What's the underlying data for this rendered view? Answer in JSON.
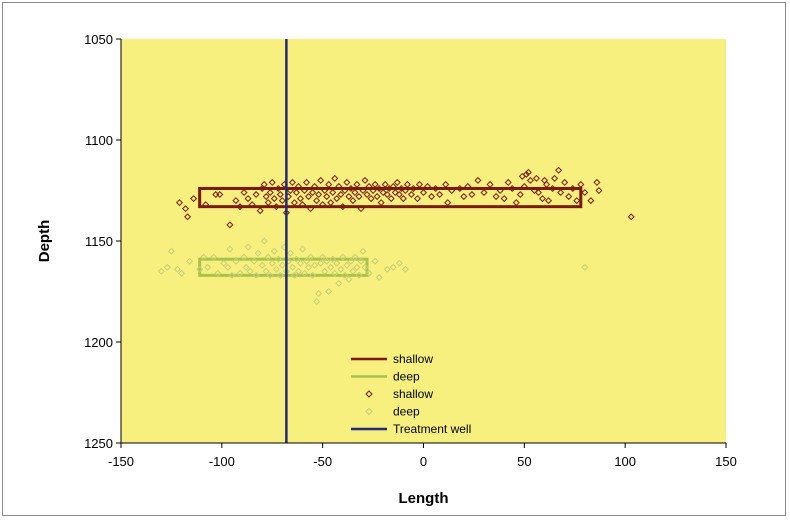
{
  "chart_data": {
    "type": "scatter",
    "xlabel": "Length",
    "ylabel": "Depth",
    "xlim": [
      -150,
      150
    ],
    "ylim": [
      1050,
      1250
    ],
    "y_inverted": true,
    "x_ticks": [
      -150,
      -100,
      -50,
      0,
      50,
      100,
      150
    ],
    "y_ticks": [
      1050,
      1100,
      1150,
      1200,
      1250
    ],
    "plot_background": "#f7ef7e",
    "grid": false,
    "legend_position": "bottom-center",
    "legend": [
      {
        "label": "shallow",
        "kind": "line",
        "color": "#7a1a12"
      },
      {
        "label": "deep",
        "kind": "line",
        "color": "#a9c24a"
      },
      {
        "label": "shallow",
        "kind": "marker",
        "color": "#7a1a12"
      },
      {
        "label": "deep",
        "kind": "marker",
        "color": "#c8cf73"
      },
      {
        "label": "Treatment well",
        "kind": "line",
        "color": "#1f2a7a"
      }
    ],
    "rectangles": [
      {
        "series": "shallow",
        "x": [
          -111,
          78
        ],
        "y": [
          1124,
          1133
        ],
        "color": "#7a1a12"
      },
      {
        "series": "deep",
        "x": [
          -111,
          -28
        ],
        "y": [
          1159,
          1167
        ],
        "color": "#a9c24a"
      }
    ],
    "treatment_well": {
      "x": -68,
      "color": "#1f2a7a"
    },
    "series": [
      {
        "name": "shallow",
        "color": "#7a1a12",
        "points": [
          [
            -121,
            1131
          ],
          [
            -118,
            1134
          ],
          [
            -117,
            1138
          ],
          [
            -114,
            1129
          ],
          [
            -108,
            1132
          ],
          [
            -103,
            1127
          ],
          [
            -101,
            1127
          ],
          [
            -96,
            1142
          ],
          [
            -93,
            1130
          ],
          [
            -91,
            1133
          ],
          [
            -89,
            1126
          ],
          [
            -87,
            1129
          ],
          [
            -85,
            1132
          ],
          [
            -83,
            1127
          ],
          [
            -81,
            1135
          ],
          [
            -80,
            1124
          ],
          [
            -79,
            1122
          ],
          [
            -78,
            1128
          ],
          [
            -77,
            1131
          ],
          [
            -76,
            1126
          ],
          [
            -75,
            1121
          ],
          [
            -74,
            1129
          ],
          [
            -73,
            1133
          ],
          [
            -72,
            1124
          ],
          [
            -71,
            1127
          ],
          [
            -70,
            1130
          ],
          [
            -69,
            1122
          ],
          [
            -68,
            1136
          ],
          [
            -67,
            1128
          ],
          [
            -66,
            1125
          ],
          [
            -65,
            1121
          ],
          [
            -64,
            1131
          ],
          [
            -63,
            1126
          ],
          [
            -62,
            1123
          ],
          [
            -61,
            1129
          ],
          [
            -60,
            1132
          ],
          [
            -59,
            1125
          ],
          [
            -58,
            1121
          ],
          [
            -57,
            1128
          ],
          [
            -56,
            1134
          ],
          [
            -55,
            1126
          ],
          [
            -54,
            1123
          ],
          [
            -53,
            1130
          ],
          [
            -52,
            1127
          ],
          [
            -51,
            1120
          ],
          [
            -50,
            1132
          ],
          [
            -49,
            1125
          ],
          [
            -48,
            1128
          ],
          [
            -47,
            1122
          ],
          [
            -46,
            1131
          ],
          [
            -45,
            1126
          ],
          [
            -44,
            1119
          ],
          [
            -43,
            1129
          ],
          [
            -42,
            1123
          ],
          [
            -41,
            1127
          ],
          [
            -40,
            1133
          ],
          [
            -39,
            1125
          ],
          [
            -38,
            1121
          ],
          [
            -37,
            1128
          ],
          [
            -36,
            1124
          ],
          [
            -35,
            1130
          ],
          [
            -34,
            1126
          ],
          [
            -33,
            1122
          ],
          [
            -32,
            1128
          ],
          [
            -31,
            1134
          ],
          [
            -30,
            1125
          ],
          [
            -29,
            1120
          ],
          [
            -28,
            1127
          ],
          [
            -27,
            1123
          ],
          [
            -26,
            1129
          ],
          [
            -25,
            1125
          ],
          [
            -24,
            1122
          ],
          [
            -23,
            1128
          ],
          [
            -22,
            1124
          ],
          [
            -21,
            1131
          ],
          [
            -20,
            1126
          ],
          [
            -19,
            1122
          ],
          [
            -18,
            1127
          ],
          [
            -17,
            1124
          ],
          [
            -16,
            1129
          ],
          [
            -15,
            1123
          ],
          [
            -14,
            1126
          ],
          [
            -13,
            1121
          ],
          [
            -12,
            1127
          ],
          [
            -11,
            1124
          ],
          [
            -10,
            1129
          ],
          [
            -9,
            1125
          ],
          [
            -8,
            1122
          ],
          [
            -6,
            1127
          ],
          [
            -5,
            1124
          ],
          [
            -3,
            1129
          ],
          [
            -2,
            1122
          ],
          [
            0,
            1126
          ],
          [
            2,
            1123
          ],
          [
            4,
            1128
          ],
          [
            6,
            1124
          ],
          [
            8,
            1127
          ],
          [
            11,
            1122
          ],
          [
            12,
            1131
          ],
          [
            14,
            1125
          ],
          [
            18,
            1124
          ],
          [
            20,
            1128
          ],
          [
            22,
            1123
          ],
          [
            24,
            1127
          ],
          [
            27,
            1120
          ],
          [
            30,
            1126
          ],
          [
            33,
            1122
          ],
          [
            36,
            1128
          ],
          [
            38,
            1125
          ],
          [
            40,
            1129
          ],
          [
            42,
            1121
          ],
          [
            44,
            1124
          ],
          [
            46,
            1131
          ],
          [
            48,
            1127
          ],
          [
            49,
            1118
          ],
          [
            50,
            1123
          ],
          [
            51,
            1117
          ],
          [
            52,
            1116
          ],
          [
            53,
            1120
          ],
          [
            55,
            1125
          ],
          [
            56,
            1119
          ],
          [
            57,
            1126
          ],
          [
            59,
            1129
          ],
          [
            60,
            1120
          ],
          [
            61,
            1122
          ],
          [
            62,
            1130
          ],
          [
            64,
            1124
          ],
          [
            65,
            1119
          ],
          [
            67,
            1115
          ],
          [
            68,
            1126
          ],
          [
            70,
            1121
          ],
          [
            72,
            1128
          ],
          [
            74,
            1124
          ],
          [
            76,
            1130
          ],
          [
            78,
            1122
          ],
          [
            80,
            1126
          ],
          [
            83,
            1130
          ],
          [
            86,
            1121
          ],
          [
            87,
            1125
          ],
          [
            103,
            1138
          ]
        ]
      },
      {
        "name": "deep",
        "color": "#c8cf73",
        "points": [
          [
            -130,
            1165
          ],
          [
            -127,
            1163
          ],
          [
            -125,
            1155
          ],
          [
            -122,
            1164
          ],
          [
            -120,
            1166
          ],
          [
            -116,
            1160
          ],
          [
            -111,
            1164
          ],
          [
            -109,
            1158
          ],
          [
            -107,
            1163
          ],
          [
            -104,
            1158
          ],
          [
            -102,
            1166
          ],
          [
            -99,
            1161
          ],
          [
            -97,
            1163
          ],
          [
            -96,
            1154
          ],
          [
            -95,
            1167
          ],
          [
            -93,
            1160
          ],
          [
            -91,
            1166
          ],
          [
            -89,
            1158
          ],
          [
            -88,
            1163
          ],
          [
            -87,
            1153
          ],
          [
            -86,
            1165
          ],
          [
            -84,
            1160
          ],
          [
            -83,
            1167
          ],
          [
            -82,
            1156
          ],
          [
            -80,
            1162
          ],
          [
            -79,
            1150
          ],
          [
            -78,
            1165
          ],
          [
            -77,
            1158
          ],
          [
            -76,
            1167
          ],
          [
            -75,
            1161
          ],
          [
            -74,
            1155
          ],
          [
            -73,
            1164
          ],
          [
            -72,
            1159
          ],
          [
            -71,
            1167
          ],
          [
            -70,
            1162
          ],
          [
            -69,
            1153
          ],
          [
            -68,
            1165
          ],
          [
            -67,
            1160
          ],
          [
            -66,
            1156
          ],
          [
            -65,
            1163
          ],
          [
            -64,
            1167
          ],
          [
            -63,
            1159
          ],
          [
            -62,
            1165
          ],
          [
            -61,
            1161
          ],
          [
            -60,
            1154
          ],
          [
            -59,
            1166
          ],
          [
            -58,
            1160
          ],
          [
            -57,
            1163
          ],
          [
            -56,
            1158
          ],
          [
            -55,
            1167
          ],
          [
            -54,
            1162
          ],
          [
            -53,
            1180
          ],
          [
            -52,
            1176
          ],
          [
            -51,
            1161
          ],
          [
            -50,
            1158
          ],
          [
            -49,
            1165
          ],
          [
            -48,
            1160
          ],
          [
            -47,
            1175
          ],
          [
            -46,
            1163
          ],
          [
            -45,
            1159
          ],
          [
            -44,
            1166
          ],
          [
            -43,
            1161
          ],
          [
            -42,
            1171
          ],
          [
            -41,
            1164
          ],
          [
            -40,
            1158
          ],
          [
            -39,
            1167
          ],
          [
            -38,
            1162
          ],
          [
            -37,
            1169
          ],
          [
            -36,
            1160
          ],
          [
            -35,
            1165
          ],
          [
            -34,
            1158
          ],
          [
            -33,
            1163
          ],
          [
            -32,
            1167
          ],
          [
            -31,
            1160
          ],
          [
            -30,
            1155
          ],
          [
            -29,
            1163
          ],
          [
            -27,
            1166
          ],
          [
            -24,
            1160
          ],
          [
            -22,
            1168
          ],
          [
            -18,
            1164
          ],
          [
            -15,
            1163
          ],
          [
            -12,
            1161
          ],
          [
            -9,
            1164
          ],
          [
            80,
            1163
          ]
        ]
      }
    ]
  }
}
